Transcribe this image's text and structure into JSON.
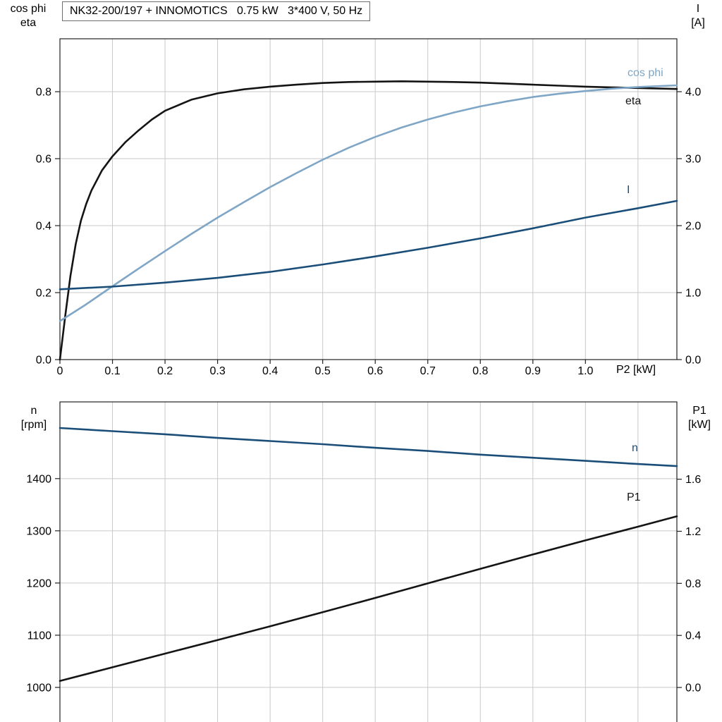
{
  "page": {
    "background": "#ffffff"
  },
  "title_box": {
    "text": "NK32-200/197 + INNOMOTICS   0.75 kW   3*400 V, 50 Hz"
  },
  "colors": {
    "light_blue": "#7FA6C6",
    "dark_blue": "#1A4E79",
    "black": "#141414",
    "grid": "#C9C9C9",
    "frame": "#222222"
  },
  "labels": {
    "top_left_line1": "cos phi",
    "top_left_line2": "eta",
    "top_right_line1": "I",
    "top_right_line2": "[A]",
    "x_axis": "P2 [kW]",
    "curve_cosphi": "cos phi",
    "curve_eta": "eta",
    "curve_I": "I",
    "bottom_left_line1": "n",
    "bottom_left_line2": "[rpm]",
    "bottom_right_line1": "P1",
    "bottom_right_line2": "[kW]",
    "curve_n": "n",
    "curve_P1": "P1"
  },
  "chart_data": [
    {
      "type": "line",
      "title": "NK32-200/197 + INNOMOTICS   0.75 kW   3*400 V, 50 Hz",
      "xlabel": "P2 [kW]",
      "xlim": [
        0,
        1.174
      ],
      "x_ticks": {
        "values": [
          0,
          0.1,
          0.2,
          0.3,
          0.4,
          0.5,
          0.6,
          0.7,
          0.8,
          0.9,
          1.0
        ],
        "labels": [
          "0",
          "0.1",
          "0.2",
          "0.3",
          "0.4",
          "0.5",
          "0.6",
          "0.7",
          "0.8",
          "0.9",
          "1.0"
        ]
      },
      "x_grid": [
        0.1,
        0.2,
        0.3,
        0.4,
        0.5,
        0.6,
        0.7,
        0.8,
        0.9,
        1.0,
        1.1
      ],
      "grid": true,
      "y_left": {
        "label": "cos phi / eta",
        "tick_values": [
          0,
          0.2,
          0.4,
          0.6,
          0.8
        ],
        "tick_labels": [
          "0.0",
          "0.2",
          "0.4",
          "0.6",
          "0.8"
        ],
        "lim": [
          0,
          0.958
        ]
      },
      "y_right": {
        "label": "I [A]",
        "tick_values": [
          0,
          1,
          2,
          3,
          4
        ],
        "tick_labels": [
          "0.0",
          "1.0",
          "2.0",
          "3.0",
          "4.0"
        ],
        "lim": [
          0,
          4.79
        ]
      },
      "series": [
        {
          "name": "eta",
          "axis": "left",
          "color_key": "black",
          "x": [
            0,
            0.01,
            0.02,
            0.03,
            0.04,
            0.05,
            0.06,
            0.08,
            0.1,
            0.125,
            0.15,
            0.175,
            0.2,
            0.25,
            0.3,
            0.35,
            0.4,
            0.45,
            0.5,
            0.55,
            0.6,
            0.65,
            0.7,
            0.75,
            0.8,
            0.85,
            0.9,
            0.95,
            1.0,
            1.05,
            1.1,
            1.174
          ],
          "y": [
            0,
            0.13,
            0.25,
            0.345,
            0.415,
            0.465,
            0.505,
            0.565,
            0.607,
            0.65,
            0.685,
            0.717,
            0.743,
            0.776,
            0.795,
            0.807,
            0.815,
            0.821,
            0.826,
            0.829,
            0.83,
            0.831,
            0.83,
            0.829,
            0.827,
            0.824,
            0.821,
            0.818,
            0.815,
            0.813,
            0.811,
            0.808
          ]
        },
        {
          "name": "cos phi",
          "axis": "left",
          "color_key": "light_blue",
          "x": [
            0,
            0.05,
            0.1,
            0.15,
            0.2,
            0.25,
            0.3,
            0.35,
            0.4,
            0.45,
            0.5,
            0.55,
            0.6,
            0.65,
            0.7,
            0.75,
            0.8,
            0.85,
            0.9,
            0.95,
            1.0,
            1.05,
            1.1,
            1.174
          ],
          "y": [
            0.115,
            0.165,
            0.219,
            0.272,
            0.324,
            0.375,
            0.424,
            0.47,
            0.515,
            0.557,
            0.597,
            0.633,
            0.665,
            0.693,
            0.717,
            0.738,
            0.756,
            0.771,
            0.784,
            0.794,
            0.802,
            0.809,
            0.814,
            0.819
          ]
        },
        {
          "name": "I",
          "axis": "right",
          "color_key": "dark_blue",
          "x": [
            0,
            0.1,
            0.2,
            0.3,
            0.4,
            0.5,
            0.6,
            0.7,
            0.8,
            0.9,
            1.0,
            1.1,
            1.174
          ],
          "y": [
            1.05,
            1.09,
            1.15,
            1.22,
            1.31,
            1.42,
            1.54,
            1.67,
            1.81,
            1.96,
            2.12,
            2.26,
            2.37
          ]
        }
      ]
    },
    {
      "type": "line",
      "title": "",
      "xlabel": "",
      "xlim": [
        0,
        1.174
      ],
      "x_ticks": {
        "values": [],
        "labels": []
      },
      "x_grid": [
        0.1,
        0.2,
        0.3,
        0.4,
        0.5,
        0.6,
        0.7,
        0.8,
        0.9,
        1.0,
        1.1
      ],
      "grid": true,
      "y_left": {
        "label": "n [rpm]",
        "tick_values": [
          1000,
          1100,
          1200,
          1300,
          1400
        ],
        "tick_labels": [
          "1000",
          "1100",
          "1200",
          "1300",
          "1400"
        ],
        "lim": [
          931,
          1547
        ]
      },
      "y_right": {
        "label": "P1 [kW]",
        "tick_values": [
          0,
          0.4,
          0.8,
          1.2,
          1.6
        ],
        "tick_labels": [
          "0.0",
          "0.4",
          "0.8",
          "1.2",
          "1.6"
        ],
        "lim": [
          -0.276,
          2.194
        ]
      },
      "series": [
        {
          "name": "n",
          "axis": "left",
          "color_key": "dark_blue",
          "x": [
            0,
            0.1,
            0.2,
            0.3,
            0.4,
            0.5,
            0.6,
            0.7,
            0.8,
            0.9,
            1.0,
            1.1,
            1.174
          ],
          "y": [
            1497,
            1491,
            1485,
            1478,
            1472,
            1466,
            1459,
            1453,
            1446,
            1440,
            1434,
            1428,
            1424
          ]
        },
        {
          "name": "P1",
          "axis": "right",
          "color_key": "black",
          "x": [
            0,
            0.1,
            0.2,
            0.3,
            0.4,
            0.5,
            0.6,
            0.7,
            0.8,
            0.9,
            1.0,
            1.1,
            1.174
          ],
          "y": [
            0.05,
            0.155,
            0.26,
            0.365,
            0.47,
            0.578,
            0.688,
            0.8,
            0.912,
            1.022,
            1.13,
            1.235,
            1.315
          ]
        }
      ]
    }
  ]
}
